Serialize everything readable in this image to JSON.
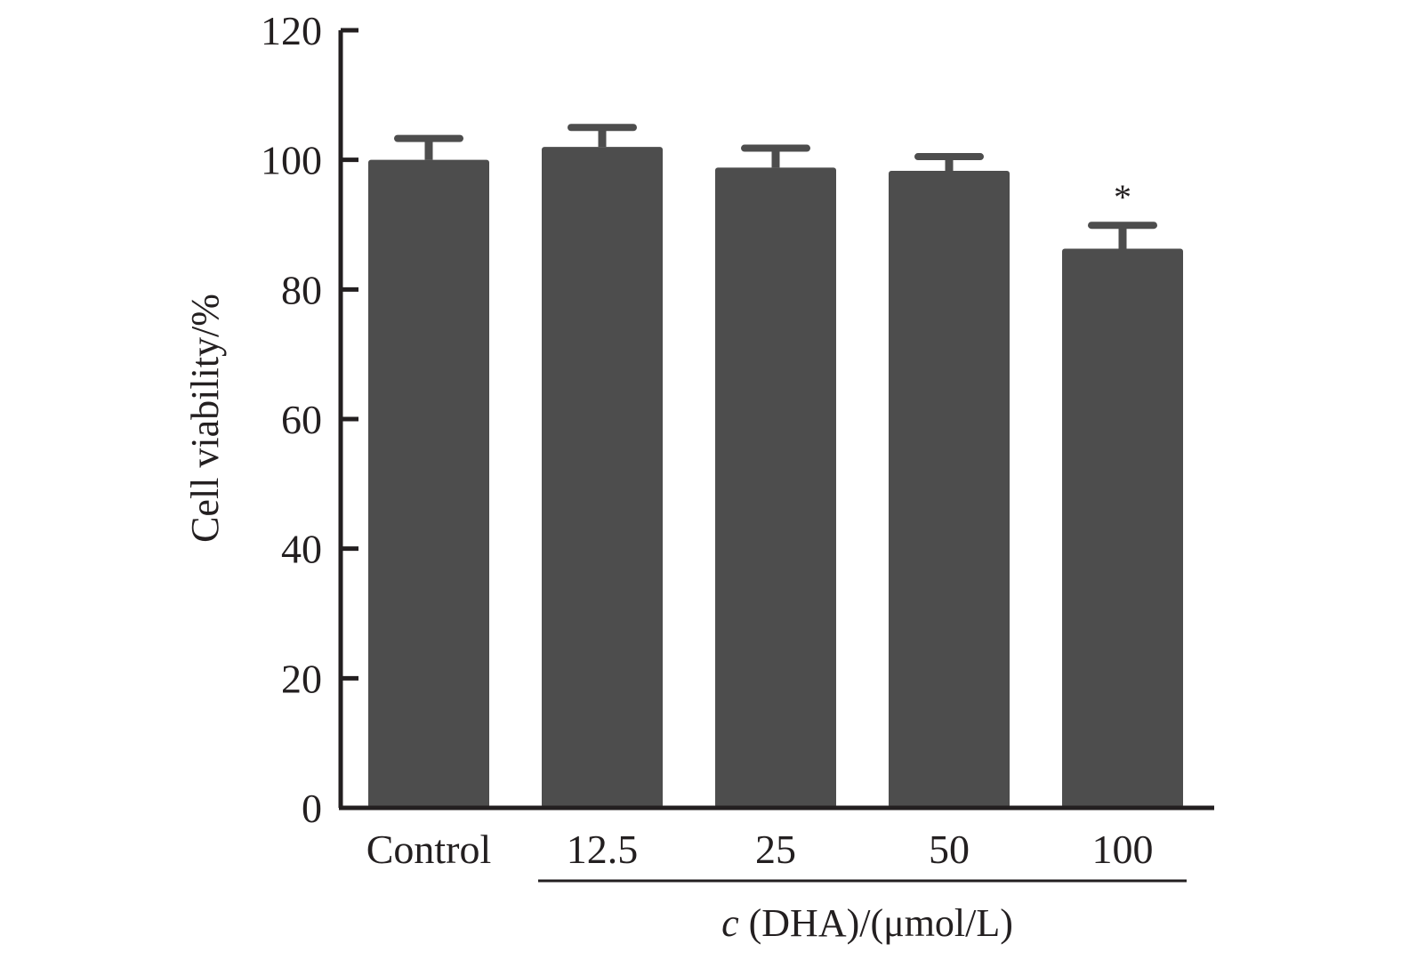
{
  "chart_data": {
    "type": "bar",
    "categories": [
      "Control",
      "12.5",
      "25",
      "50",
      "100"
    ],
    "values": [
      100,
      102,
      98.8,
      98.3,
      86.3
    ],
    "errors": [
      3.3,
      3.0,
      3.0,
      2.2,
      3.6
    ],
    "annotations": [
      "",
      "",
      "",
      "",
      "*"
    ],
    "ylabel": "Cell viability/%",
    "xlabel_italic": "c",
    "xlabel_rest": " (DHA)/(μmol/L)",
    "ylim": [
      0,
      120
    ],
    "yticks": [
      0,
      20,
      40,
      60,
      80,
      100,
      120
    ],
    "bar_color": "#4d4d4d",
    "axis_color": "#231f20",
    "grid": false,
    "bracket_group": [
      "12.5",
      "25",
      "50",
      "100"
    ]
  }
}
